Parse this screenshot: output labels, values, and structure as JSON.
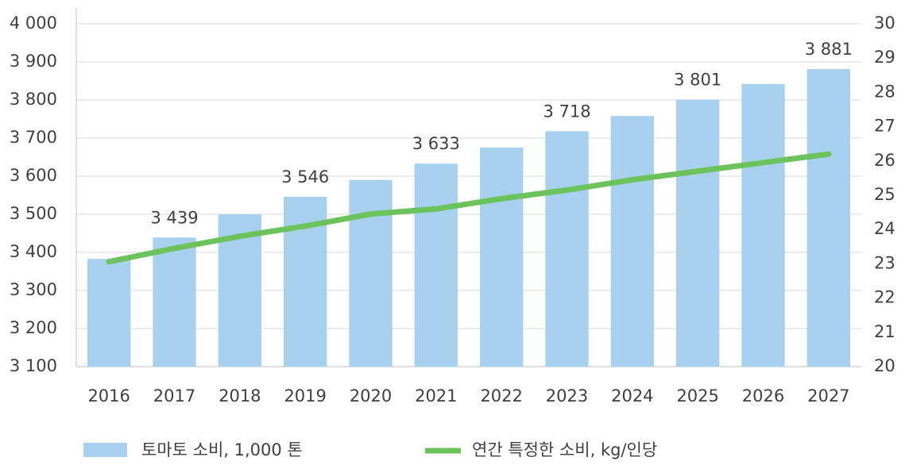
{
  "chart_data": {
    "type": "bar",
    "categories": [
      "2016",
      "2017",
      "2018",
      "2019",
      "2020",
      "2021",
      "2022",
      "2023",
      "2024",
      "2025",
      "2026",
      "2027"
    ],
    "series": [
      {
        "name": "토마토 소비, 1,000 톤",
        "type": "bar",
        "color": "#a8d0ef",
        "values": [
          3383,
          3439,
          3500,
          3546,
          3590,
          3633,
          3675,
          3718,
          3758,
          3801,
          3842,
          3881
        ],
        "value_labels": [
          null,
          "3 439",
          null,
          "3 546",
          null,
          "3 633",
          null,
          "3 718",
          null,
          "3 801",
          null,
          "3 881"
        ]
      },
      {
        "name": "연간 특정한 소비, kg/인당",
        "type": "line",
        "axis": "y2",
        "color": "#6cc35c",
        "values": [
          23.06,
          23.45,
          23.8,
          24.1,
          24.45,
          24.6,
          24.9,
          25.15,
          25.45,
          25.7,
          25.95,
          26.2
        ]
      }
    ],
    "ylim": [
      3100,
      4000
    ],
    "yticks": [
      {
        "value": 3100,
        "label": "3 100"
      },
      {
        "value": 3200,
        "label": "3 200"
      },
      {
        "value": 3300,
        "label": "3 300"
      },
      {
        "value": 3400,
        "label": "3 400"
      },
      {
        "value": 3500,
        "label": "3 500"
      },
      {
        "value": 3600,
        "label": "3 600"
      },
      {
        "value": 3700,
        "label": "3 700"
      },
      {
        "value": 3800,
        "label": "3 800"
      },
      {
        "value": 3900,
        "label": "3 900"
      },
      {
        "value": 4000,
        "label": "4 000"
      }
    ],
    "y2lim": [
      20,
      30
    ],
    "y2ticks": [
      20,
      21,
      22,
      23,
      24,
      25,
      26,
      27,
      28,
      29,
      30
    ],
    "grid": true,
    "legend": "bottom"
  }
}
